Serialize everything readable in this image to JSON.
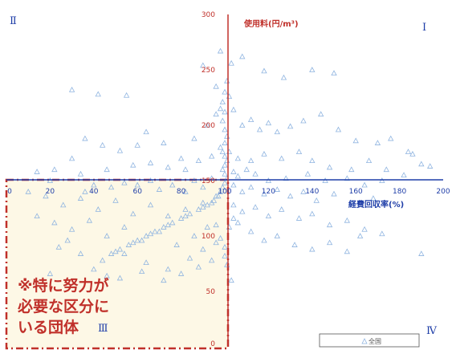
{
  "chart_data": {
    "type": "scatter",
    "xlabel": "経費回収率(%)",
    "ylabel": "使用料(円/m³)",
    "xlim": [
      0,
      200
    ],
    "ylim": [
      0,
      300
    ],
    "x_ticks": [
      "0",
      "20",
      "40",
      "60",
      "80",
      "100",
      "120",
      "140",
      "160",
      "180",
      "200"
    ],
    "y_ticks": [
      "0",
      "50",
      "100",
      "150",
      "200",
      "250",
      "300"
    ],
    "axes_cross": {
      "x": 100,
      "y": 150
    },
    "quadrants": {
      "I": "Ⅰ",
      "II": "Ⅱ",
      "III": "Ⅲ",
      "IV": "Ⅳ"
    },
    "legend": [
      {
        "name": "全国",
        "marker": "triangle"
      }
    ],
    "callout_lines": [
      "※特に努力が",
      "必要な区分に",
      "いる団体"
    ],
    "series": [
      {
        "name": "全国",
        "points": [
          [
            30,
            232
          ],
          [
            42,
            228
          ],
          [
            55,
            227
          ],
          [
            90,
            254
          ],
          [
            96,
            235
          ],
          [
            103,
            256
          ],
          [
            118,
            249
          ],
          [
            127,
            243
          ],
          [
            140,
            250
          ],
          [
            150,
            247
          ],
          [
            108,
            262
          ],
          [
            98,
            267
          ],
          [
            22,
            160
          ],
          [
            30,
            170
          ],
          [
            36,
            188
          ],
          [
            44,
            182
          ],
          [
            52,
            177
          ],
          [
            60,
            182
          ],
          [
            64,
            194
          ],
          [
            72,
            184
          ],
          [
            80,
            170
          ],
          [
            86,
            188
          ],
          [
            92,
            200
          ],
          [
            96,
            210
          ],
          [
            98,
            215
          ],
          [
            99,
            221
          ],
          [
            100,
            230
          ],
          [
            101,
            240
          ],
          [
            102,
            226
          ],
          [
            104,
            214
          ],
          [
            108,
            200
          ],
          [
            112,
            205
          ],
          [
            116,
            196
          ],
          [
            120,
            202
          ],
          [
            124,
            194
          ],
          [
            130,
            199
          ],
          [
            136,
            204
          ],
          [
            144,
            210
          ],
          [
            152,
            196
          ],
          [
            160,
            186
          ],
          [
            170,
            184
          ],
          [
            176,
            188
          ],
          [
            186,
            174
          ],
          [
            190,
            165
          ],
          [
            194,
            163
          ],
          [
            184,
            176
          ],
          [
            14,
            158
          ],
          [
            20,
            150
          ],
          [
            34,
            156
          ],
          [
            46,
            160
          ],
          [
            58,
            164
          ],
          [
            66,
            166
          ],
          [
            74,
            162
          ],
          [
            82,
            160
          ],
          [
            88,
            168
          ],
          [
            94,
            172
          ],
          [
            98,
            180
          ],
          [
            102,
            176
          ],
          [
            106,
            170
          ],
          [
            112,
            168
          ],
          [
            118,
            174
          ],
          [
            126,
            170
          ],
          [
            134,
            176
          ],
          [
            140,
            168
          ],
          [
            148,
            162
          ],
          [
            158,
            160
          ],
          [
            166,
            168
          ],
          [
            174,
            160
          ],
          [
            182,
            155
          ],
          [
            104,
            158
          ],
          [
            106,
            154
          ],
          [
            110,
            160
          ],
          [
            114,
            156
          ],
          [
            120,
            150
          ],
          [
            128,
            152
          ],
          [
            138,
            156
          ],
          [
            146,
            150
          ],
          [
            156,
            152
          ],
          [
            164,
            146
          ],
          [
            172,
            150
          ],
          [
            104,
            146
          ],
          [
            108,
            140
          ],
          [
            112,
            144
          ],
          [
            118,
            138
          ],
          [
            124,
            142
          ],
          [
            130,
            136
          ],
          [
            136,
            140
          ],
          [
            142,
            132
          ],
          [
            150,
            138
          ],
          [
            158,
            130
          ],
          [
            168,
            134
          ],
          [
            104,
            128
          ],
          [
            108,
            122
          ],
          [
            114,
            126
          ],
          [
            120,
            118
          ],
          [
            126,
            124
          ],
          [
            134,
            116
          ],
          [
            140,
            120
          ],
          [
            148,
            110
          ],
          [
            156,
            114
          ],
          [
            164,
            106
          ],
          [
            172,
            102
          ],
          [
            106,
            112
          ],
          [
            112,
            104
          ],
          [
            118,
            96
          ],
          [
            124,
            100
          ],
          [
            132,
            92
          ],
          [
            140,
            88
          ],
          [
            148,
            94
          ],
          [
            156,
            86
          ],
          [
            190,
            84
          ],
          [
            162,
            100
          ],
          [
            104,
            116
          ],
          [
            102,
            108
          ],
          [
            100,
            90
          ],
          [
            101,
            74
          ],
          [
            103,
            60
          ],
          [
            100,
            82
          ],
          [
            98,
            98
          ],
          [
            96,
            110
          ],
          [
            10,
            140
          ],
          [
            18,
            136
          ],
          [
            26,
            128
          ],
          [
            34,
            134
          ],
          [
            42,
            124
          ],
          [
            50,
            132
          ],
          [
            58,
            120
          ],
          [
            66,
            128
          ],
          [
            74,
            118
          ],
          [
            82,
            124
          ],
          [
            90,
            130
          ],
          [
            96,
            136
          ],
          [
            14,
            118
          ],
          [
            22,
            112
          ],
          [
            30,
            106
          ],
          [
            38,
            114
          ],
          [
            46,
            100
          ],
          [
            54,
            108
          ],
          [
            62,
            96
          ],
          [
            70,
            104
          ],
          [
            78,
            92
          ],
          [
            86,
            100
          ],
          [
            92,
            108
          ],
          [
            24,
            90
          ],
          [
            34,
            84
          ],
          [
            44,
            78
          ],
          [
            54,
            84
          ],
          [
            64,
            76
          ],
          [
            74,
            70
          ],
          [
            84,
            80
          ],
          [
            90,
            88
          ],
          [
            96,
            94
          ],
          [
            40,
            70
          ],
          [
            52,
            62
          ],
          [
            62,
            68
          ],
          [
            72,
            60
          ],
          [
            80,
            66
          ],
          [
            88,
            72
          ],
          [
            94,
            78
          ],
          [
            28,
            96
          ],
          [
            20,
            66
          ],
          [
            46,
            64
          ],
          [
            48,
            84
          ],
          [
            52,
            88
          ],
          [
            56,
            92
          ],
          [
            60,
            96
          ],
          [
            64,
            100
          ],
          [
            68,
            104
          ],
          [
            72,
            108
          ],
          [
            76,
            112
          ],
          [
            80,
            116
          ],
          [
            84,
            120
          ],
          [
            88,
            124
          ],
          [
            92,
            128
          ],
          [
            95,
            132
          ],
          [
            97,
            136
          ],
          [
            98,
            140
          ],
          [
            99,
            144
          ],
          [
            100,
            148
          ],
          [
            101,
            152
          ],
          [
            100,
            156
          ],
          [
            99,
            160
          ],
          [
            100,
            164
          ],
          [
            101,
            168
          ],
          [
            100,
            172
          ],
          [
            99,
            176
          ],
          [
            100,
            184
          ],
          [
            101,
            190
          ],
          [
            100,
            196
          ],
          [
            99,
            204
          ],
          [
            100,
            212
          ],
          [
            50,
            86
          ],
          [
            58,
            94
          ],
          [
            66,
            102
          ],
          [
            74,
            110
          ],
          [
            82,
            118
          ],
          [
            90,
            126
          ],
          [
            94,
            130
          ],
          [
            70,
            142
          ],
          [
            76,
            146
          ],
          [
            82,
            140
          ],
          [
            86,
            150
          ],
          [
            90,
            144
          ],
          [
            94,
            152
          ],
          [
            60,
            146
          ],
          [
            66,
            150
          ],
          [
            54,
            148
          ],
          [
            48,
            144
          ],
          [
            40,
            146
          ],
          [
            36,
            140
          ]
        ]
      }
    ]
  }
}
